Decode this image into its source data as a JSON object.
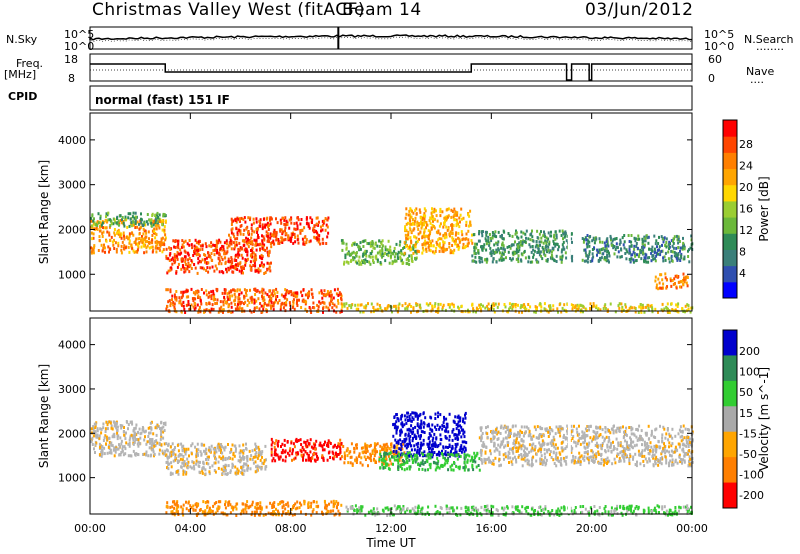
{
  "header": {
    "station": "Christmas Valley West (fitACF)",
    "beam": "Beam 14",
    "date": "03/Jun/2012"
  },
  "params": {
    "nsky_label": "N.Sky",
    "nsearch_label": "N.Search",
    "freq_label": "Freq.",
    "freq_unit": "[MHz]",
    "nave_label": "Nave",
    "cpid_label": "CPID",
    "cpid_value": "normal (fast) 151 IF",
    "left_top_tick": "10^5",
    "left_bottom_tick": "10^0",
    "right_top_tick": "10^5",
    "right_bottom_tick": "10^0",
    "freq_ticks": [
      "18",
      "8"
    ],
    "nave_ticks": [
      "60",
      "0"
    ]
  },
  "chart_data": [
    {
      "type": "heatmap",
      "name": "power",
      "ylabel": "Slant Range [km]",
      "ylim": [
        180,
        4600
      ],
      "yticks": [
        "4000",
        "3000",
        "2000",
        "1000"
      ],
      "xlim": [
        0,
        24
      ],
      "xticks": [
        "00:00",
        "04:00",
        "08:00",
        "12:00",
        "16:00",
        "20:00",
        "00:00"
      ],
      "colorbar_label": "Power [dB]",
      "colorbar_ticks": [
        "28",
        "24",
        "20",
        "16",
        "12",
        "8",
        "4"
      ],
      "colorbar_colors": [
        "#0000ff",
        "#2f4fb0",
        "#3a7f7a",
        "#2e8b57",
        "#6bb83a",
        "#9acd32",
        "#ffd700",
        "#ffa500",
        "#ff7f00",
        "#ff4500",
        "#ff0000"
      ],
      "bands": [
        {
          "t": [
            0.0,
            3.0
          ],
          "r": [
            1500,
            2250
          ],
          "level": 0.75
        },
        {
          "t": [
            0.0,
            3.0
          ],
          "r": [
            2100,
            2400
          ],
          "level": 0.35
        },
        {
          "t": [
            3.0,
            7.2
          ],
          "r": [
            1050,
            1800
          ],
          "level": 0.9
        },
        {
          "t": [
            5.5,
            9.5
          ],
          "r": [
            1700,
            2300
          ],
          "level": 0.9
        },
        {
          "t": [
            3.0,
            10.0
          ],
          "r": [
            180,
            700
          ],
          "level": 0.85
        },
        {
          "t": [
            10.0,
            13.0
          ],
          "r": [
            1250,
            1800
          ],
          "level": 0.4
        },
        {
          "t": [
            12.5,
            15.2
          ],
          "r": [
            1500,
            2500
          ],
          "level": 0.7
        },
        {
          "t": [
            15.2,
            19.2
          ],
          "r": [
            1300,
            2000
          ],
          "level": 0.3
        },
        {
          "t": [
            19.6,
            24.0
          ],
          "r": [
            1300,
            1900
          ],
          "level": 0.25
        },
        {
          "t": [
            22.5,
            23.8
          ],
          "r": [
            700,
            1050
          ],
          "level": 0.8
        },
        {
          "t": [
            10.0,
            24.0
          ],
          "r": [
            180,
            380
          ],
          "level": 0.6
        }
      ]
    },
    {
      "type": "heatmap",
      "name": "velocity",
      "ylabel": "Slant Range [km]",
      "ylim": [
        180,
        4600
      ],
      "yticks": [
        "4000",
        "3000",
        "2000",
        "1000"
      ],
      "xlabel": "Time UT",
      "xlim": [
        0,
        24
      ],
      "xticks": [
        "00:00",
        "04:00",
        "08:00",
        "12:00",
        "16:00",
        "20:00",
        "00:00"
      ],
      "colorbar_label": "Velocity [m s^-1]",
      "colorbar_ticks": [
        "200",
        "100",
        "50",
        "15",
        "-15",
        "-50",
        "-100",
        "-200"
      ],
      "colorbar_colors": [
        "#0000cd",
        "#2e8b57",
        "#32cd32",
        "#a9a9a9",
        "#ffa500",
        "#ff7f00",
        "#ff0000"
      ],
      "bands": [
        {
          "t": [
            0.0,
            3.0
          ],
          "r": [
            1500,
            2300
          ],
          "value": 0
        },
        {
          "t": [
            3.0,
            7.0
          ],
          "r": [
            1100,
            1800
          ],
          "value": 0
        },
        {
          "t": [
            7.2,
            10.0
          ],
          "r": [
            1400,
            1900
          ],
          "value": -120
        },
        {
          "t": [
            10.0,
            12.5
          ],
          "r": [
            1300,
            1800
          ],
          "value": -60
        },
        {
          "t": [
            12.0,
            15.0
          ],
          "r": [
            1500,
            2500
          ],
          "value": 200
        },
        {
          "t": [
            11.5,
            15.5
          ],
          "r": [
            1200,
            1600
          ],
          "value": 60
        },
        {
          "t": [
            15.5,
            24.0
          ],
          "r": [
            1300,
            2200
          ],
          "value": 0
        },
        {
          "t": [
            3.0,
            10.0
          ],
          "r": [
            180,
            500
          ],
          "value": -60
        },
        {
          "t": [
            10.0,
            24.0
          ],
          "r": [
            180,
            400
          ],
          "value": 40
        }
      ]
    }
  ]
}
